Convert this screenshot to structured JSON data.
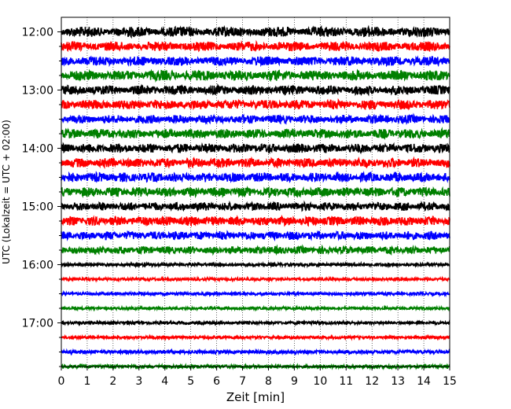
{
  "chart_data": {
    "type": "line",
    "title": "",
    "xlabel": "Zeit  [min]",
    "ylabel": "UTC (Lokalzeit = UTC + 02:00)",
    "xlim": [
      0,
      15
    ],
    "x_ticks": [
      "0",
      "1",
      "2",
      "3",
      "4",
      "5",
      "6",
      "7",
      "8",
      "9",
      "10",
      "11",
      "12",
      "13",
      "14",
      "15"
    ],
    "y_tick_labels": [
      "12:00",
      "13:00",
      "14:00",
      "15:00",
      "16:00",
      "17:00"
    ],
    "grid": "vertical dotted at each minute",
    "trace_interval_minutes": 15,
    "line_colors": [
      "#000000",
      "#ff0000",
      "#0000ff",
      "#008000"
    ],
    "series": [
      {
        "start": "12:00",
        "color": "#000000",
        "amplitude": 0.55
      },
      {
        "start": "12:15",
        "color": "#ff0000",
        "amplitude": 0.5
      },
      {
        "start": "12:30",
        "color": "#0000ff",
        "amplitude": 0.5
      },
      {
        "start": "12:45",
        "color": "#008000",
        "amplitude": 0.55
      },
      {
        "start": "13:00",
        "color": "#000000",
        "amplitude": 0.5
      },
      {
        "start": "13:15",
        "color": "#ff0000",
        "amplitude": 0.5
      },
      {
        "start": "13:30",
        "color": "#0000ff",
        "amplitude": 0.45
      },
      {
        "start": "13:45",
        "color": "#008000",
        "amplitude": 0.5
      },
      {
        "start": "14:00",
        "color": "#000000",
        "amplitude": 0.5
      },
      {
        "start": "14:15",
        "color": "#ff0000",
        "amplitude": 0.5
      },
      {
        "start": "14:30",
        "color": "#0000ff",
        "amplitude": 0.5
      },
      {
        "start": "14:45",
        "color": "#008000",
        "amplitude": 0.5
      },
      {
        "start": "15:00",
        "color": "#000000",
        "amplitude": 0.45
      },
      {
        "start": "15:15",
        "color": "#ff0000",
        "amplitude": 0.5
      },
      {
        "start": "15:30",
        "color": "#0000ff",
        "amplitude": 0.45
      },
      {
        "start": "15:45",
        "color": "#008000",
        "amplitude": 0.4
      },
      {
        "start": "16:00",
        "color": "#000000",
        "amplitude": 0.18
      },
      {
        "start": "16:15",
        "color": "#ff0000",
        "amplitude": 0.16
      },
      {
        "start": "16:30",
        "color": "#0000ff",
        "amplitude": 0.16
      },
      {
        "start": "16:45",
        "color": "#008000",
        "amplitude": 0.16
      },
      {
        "start": "17:00",
        "color": "#000000",
        "amplitude": 0.16
      },
      {
        "start": "17:15",
        "color": "#ff0000",
        "amplitude": 0.16
      },
      {
        "start": "17:30",
        "color": "#0000ff",
        "amplitude": 0.2
      },
      {
        "start": "17:45",
        "color": "#008000",
        "amplitude": 0.2
      }
    ]
  }
}
